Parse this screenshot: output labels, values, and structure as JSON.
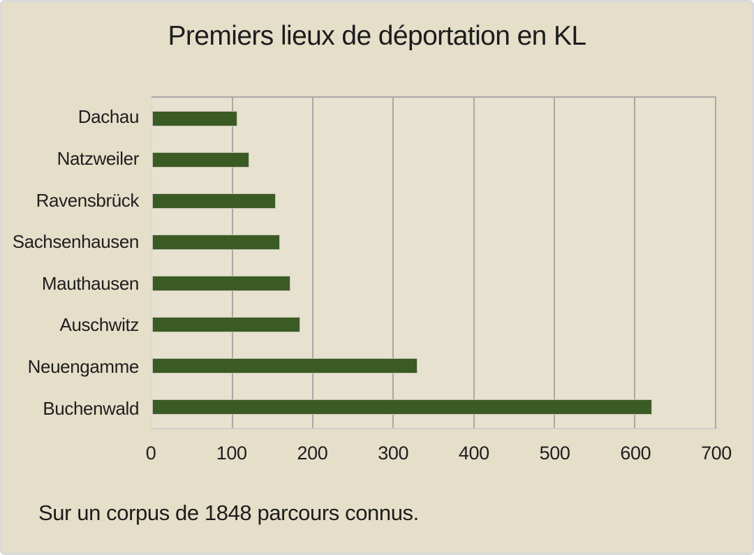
{
  "chart_data": {
    "type": "bar",
    "orientation": "horizontal",
    "title": "Premiers lieux de déportation en KL",
    "categories": [
      "Dachau",
      "Natzweiler",
      "Ravensbrück",
      "Sachsenhausen",
      "Mauthausen",
      "Auschwitz",
      "Neuengamme",
      "Buchenwald"
    ],
    "values": [
      106,
      121,
      154,
      159,
      172,
      184,
      330,
      622
    ],
    "xlabel": "",
    "ylabel": "",
    "xlim": [
      0,
      700
    ],
    "x_ticks": [
      0,
      100,
      200,
      300,
      400,
      500,
      600,
      700
    ],
    "grid": true,
    "legend": "none",
    "bar_color": "#3a5b24",
    "gridline_color": "#a9a7a7",
    "background_color": "#e5dec9",
    "plot_background_color": "#e7e1cf"
  },
  "footer": {
    "note": "Sur un corpus de 1848 parcours connus."
  }
}
